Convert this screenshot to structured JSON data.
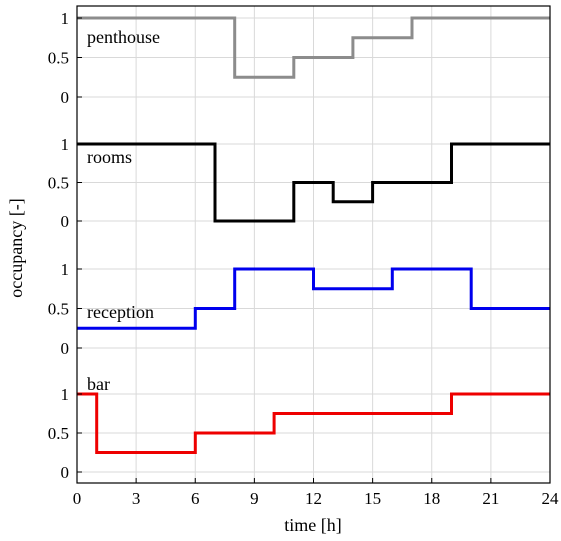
{
  "chart_data": {
    "type": "line",
    "step": true,
    "xlabel": "time [h]",
    "ylabel": "occupancy [-]",
    "xlim": [
      0,
      24
    ],
    "xticks": [
      0,
      3,
      6,
      9,
      12,
      15,
      18,
      21,
      24
    ],
    "xtick_labels": [
      "0",
      "3",
      "6",
      "9",
      "12",
      "15",
      "18",
      "21",
      "24"
    ],
    "ytick_values": [
      0,
      0.5,
      1
    ],
    "ytick_labels": [
      "0",
      "0.5",
      "1"
    ],
    "grid": true,
    "series": [
      {
        "name": "penthouse",
        "color": "#8c8c8c",
        "x": [
          0,
          8,
          8,
          11,
          11,
          14,
          14,
          17,
          17,
          24
        ],
        "y": [
          1,
          1,
          0.25,
          0.25,
          0.5,
          0.5,
          0.75,
          0.75,
          1,
          1
        ]
      },
      {
        "name": "rooms",
        "color": "#000000",
        "x": [
          0,
          7,
          7,
          11,
          11,
          13,
          13,
          15,
          15,
          19,
          19,
          24
        ],
        "y": [
          1,
          1,
          0,
          0,
          0.5,
          0.5,
          0.25,
          0.25,
          0.5,
          0.5,
          1,
          1
        ]
      },
      {
        "name": "reception",
        "color": "#0000ee",
        "x": [
          0,
          6,
          6,
          8,
          8,
          12,
          12,
          16,
          16,
          20,
          20,
          24
        ],
        "y": [
          0.25,
          0.25,
          0.5,
          0.5,
          1,
          1,
          0.75,
          0.75,
          1,
          1,
          0.5,
          0.5
        ]
      },
      {
        "name": "bar",
        "color": "#ee0000",
        "x": [
          0,
          1,
          1,
          6,
          6,
          10,
          10,
          19,
          19,
          24
        ],
        "y": [
          1,
          1,
          0.25,
          0.25,
          0.5,
          0.5,
          0.75,
          0.75,
          1,
          1
        ]
      }
    ]
  }
}
